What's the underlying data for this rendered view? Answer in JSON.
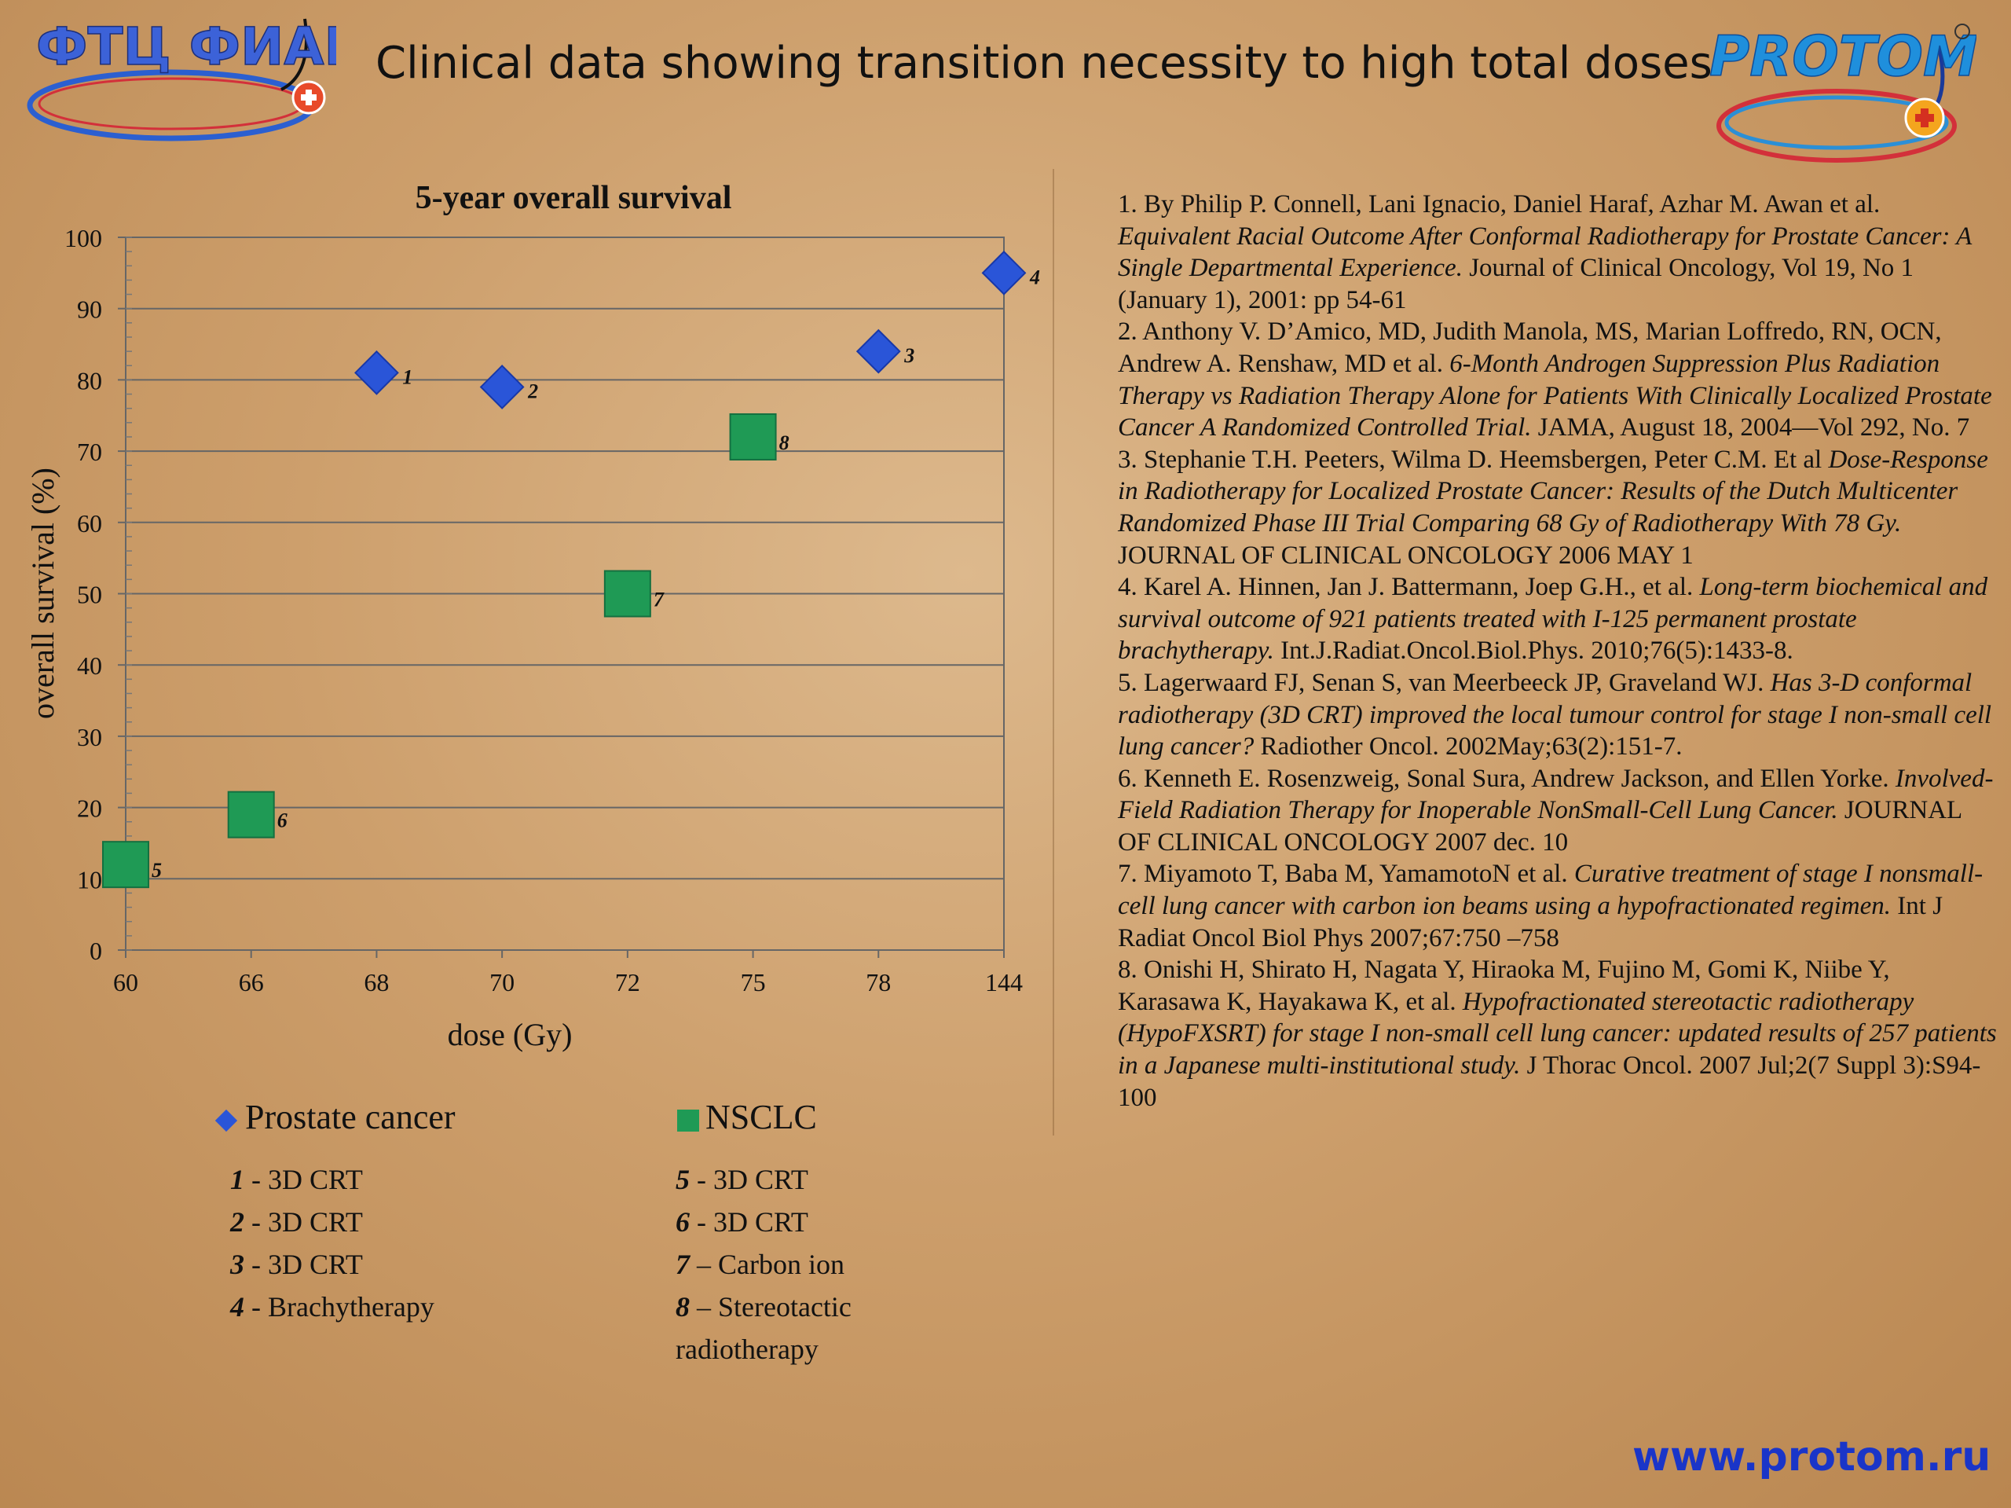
{
  "header": {
    "title": "Clinical data showing transition necessity to high total doses",
    "logo_left_text": "ФТЦ ФИАН",
    "logo_right_text": "PROTOM"
  },
  "chart_data": {
    "type": "scatter",
    "title": "5-year overall survival",
    "xlabel": "dose (Gy)",
    "ylabel": "overall survival (%)",
    "categories": [
      "60",
      "66",
      "68",
      "70",
      "72",
      "75",
      "78",
      "144"
    ],
    "ylim": [
      0,
      100
    ],
    "yticks": [
      "0",
      "10",
      "20",
      "30",
      "40",
      "50",
      "60",
      "70",
      "80",
      "90",
      "100"
    ],
    "grid": true,
    "series": [
      {
        "name": "Prostate cancer",
        "marker": "diamond",
        "color": "#2a55d8",
        "points": [
          {
            "x": "68",
            "y": 81,
            "label": "1"
          },
          {
            "x": "70",
            "y": 79,
            "label": "2"
          },
          {
            "x": "78",
            "y": 84,
            "label": "3"
          },
          {
            "x": "144",
            "y": 95,
            "label": "4"
          }
        ]
      },
      {
        "name": "NSCLC",
        "marker": "square",
        "color": "#1f9a55",
        "points": [
          {
            "x": "60",
            "y": 12,
            "label": "5"
          },
          {
            "x": "66",
            "y": 19,
            "label": "6"
          },
          {
            "x": "72",
            "y": 50,
            "label": "7"
          },
          {
            "x": "75",
            "y": 72,
            "label": "8"
          }
        ]
      }
    ]
  },
  "legend": {
    "prostate": {
      "title": "Prostate cancer",
      "items": [
        {
          "num": "1",
          "text": " - 3D CRT"
        },
        {
          "num": "2",
          "text": " - 3D CRT"
        },
        {
          "num": "3",
          "text": " - 3D CRT"
        },
        {
          "num": "4",
          "text": " - Brachytherapy"
        }
      ]
    },
    "nsclc": {
      "title": "NSCLC",
      "items": [
        {
          "num": "5",
          "text": " - 3D CRT"
        },
        {
          "num": "6",
          "text": " - 3D CRT"
        },
        {
          "num": "7",
          "text": " – Carbon ion"
        },
        {
          "num": "8",
          "text": " – Stereotactic"
        }
      ],
      "continuation": "radiotherapy"
    }
  },
  "references": [
    {
      "prefix": "1. By Philip P. Connell, Lani Ignacio, Daniel Haraf, Azhar M. Awan et al. ",
      "title": "Equivalent Racial Outcome After Conformal Radiotherapy for Prostate Cancer: A Single Departmental Experience.",
      "suffix": " Journal of Clinical Oncology, Vol 19, No 1 (January 1), 2001: pp 54-61"
    },
    {
      "prefix": "2. Anthony V. D’Amico, MD, Judith Manola, MS, Marian Loffredo, RN, OCN, Andrew A. Renshaw, MD et al. ",
      "title": "6-Month Androgen Suppression Plus Radiation Therapy vs Radiation Therapy Alone for Patients With Clinically Localized Prostate Cancer A Randomized Controlled Trial.",
      "suffix": " JAMA, August 18, 2004—Vol 292, No. 7"
    },
    {
      "prefix": "3. Stephanie T.H. Peeters, Wilma D. Heemsbergen, Peter C.M. Et al ",
      "title": "Dose-Response in Radiotherapy for Localized Prostate Cancer: Results of the Dutch Multicenter Randomized Phase III Trial Comparing 68 Gy of Radiotherapy With 78 Gy.",
      "suffix": " JOURNAL OF CLINICAL ONCOLOGY 2006 MAY 1"
    },
    {
      "prefix": "4. Karel A. Hinnen, Jan J. Battermann, Joep G.H., et al. ",
      "title": "Long-term biochemical and survival outcome of 921 patients treated with I-125 permanent prostate brachytherapy.",
      "suffix": " Int.J.Radiat.Oncol.Biol.Phys. 2010;76(5):1433-8."
    },
    {
      "prefix": "5. Lagerwaard FJ, Senan S, van Meerbeeck JP, Graveland WJ. ",
      "title": "Has 3-D conformal radiotherapy (3D CRT) improved the local tumour control for stage I non-small cell lung cancer?",
      "suffix": " Radiother Oncol. 2002May;63(2):151-7."
    },
    {
      "prefix": "6. Kenneth E. Rosenzweig, Sonal Sura, Andrew Jackson, and Ellen Yorke. ",
      "title": "Involved-Field Radiation Therapy for Inoperable NonSmall-Cell Lung Cancer.",
      "suffix": " JOURNAL OF CLINICAL ONCOLOGY 2007 dec. 10"
    },
    {
      "prefix": "7. Miyamoto T, Baba M, YamamotoN et al. ",
      "title": "Curative treatment of stage I nonsmall- cell lung cancer with carbon ion beams using a hypofractionated regimen.",
      "suffix": " Int J Radiat Oncol Biol Phys 2007;67:750 –758"
    },
    {
      "prefix": "8. Onishi H, Shirato H, Nagata Y, Hiraoka M, Fujino M, Gomi K, Niibe Y, Karasawa K, Hayakawa K, et al. ",
      "title": "Hypofractionated stereotactic radiotherapy (HypoFXSRT) for stage I non-small cell lung cancer: updated results of 257 patients in a Japanese multi-institutional study.",
      "suffix": " J Thorac Oncol. 2007 Jul;2(7 Suppl 3):S94-100"
    }
  ],
  "footer": {
    "website": "www.protom.ru"
  }
}
